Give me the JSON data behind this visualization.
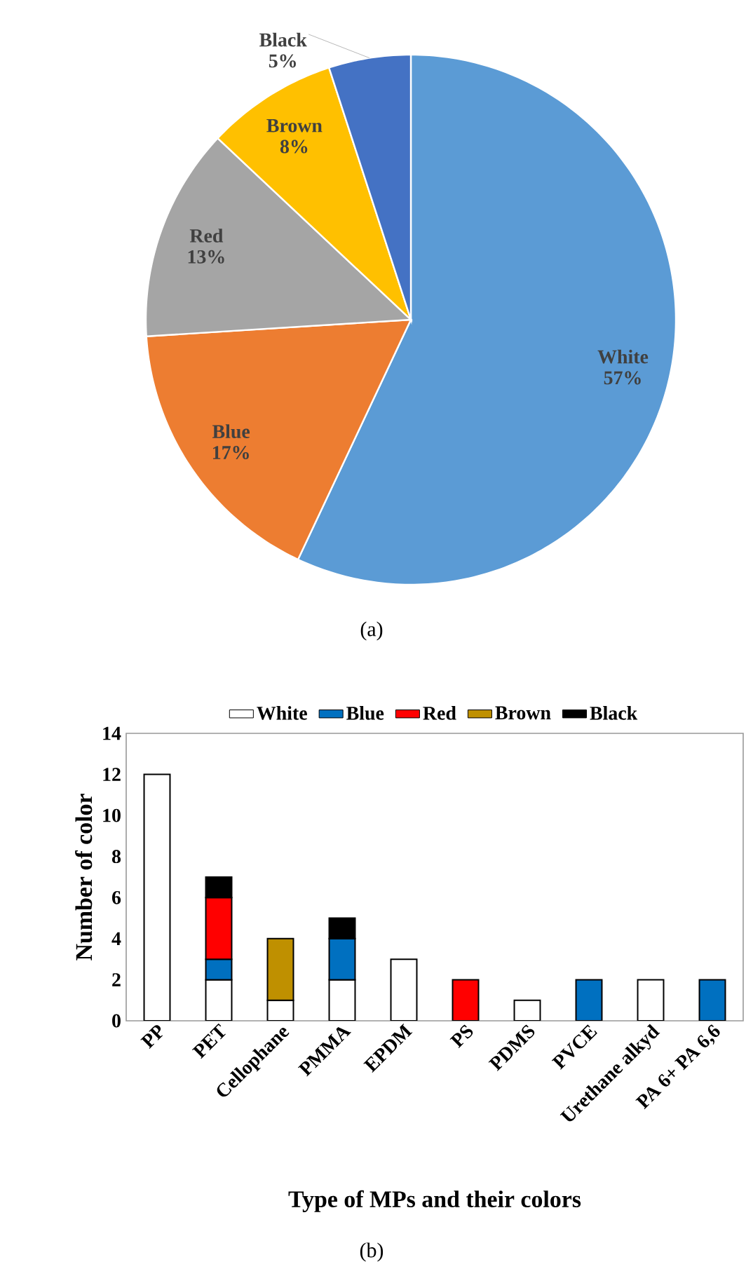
{
  "chart_data": [
    {
      "type": "pie",
      "categories": [
        "White",
        "Blue",
        "Red",
        "Brown",
        "Black"
      ],
      "values": [
        57,
        17,
        13,
        8,
        5
      ],
      "colors": [
        "#5b9bd5",
        "#ed7d31",
        "#a5a5a5",
        "#ffc000",
        "#4472c4"
      ],
      "value_labels": [
        "57%",
        "17%",
        "13%",
        "8%",
        "5%"
      ],
      "annotations": [
        "(a)"
      ]
    },
    {
      "type": "bar",
      "categories": [
        "PP",
        "PET",
        "Cellophane",
        "PMMA",
        "EPDM",
        "PS",
        "PDMS",
        "PVCE",
        "Urethane alkyd",
        "PA 6+ PA 6,6"
      ],
      "stacked": true,
      "series": [
        {
          "name": "White",
          "color": "#ffffff",
          "values": [
            12,
            2,
            1,
            2,
            3,
            null,
            1,
            null,
            2,
            null
          ]
        },
        {
          "name": "Blue",
          "color": "#0070c0",
          "values": [
            null,
            1,
            null,
            2,
            null,
            null,
            null,
            2,
            null,
            2
          ]
        },
        {
          "name": "Red",
          "color": "#ff0000",
          "values": [
            null,
            3,
            null,
            null,
            null,
            2,
            null,
            null,
            null,
            null
          ]
        },
        {
          "name": "Brown",
          "color": "#bf9000",
          "values": [
            null,
            null,
            3,
            null,
            null,
            null,
            null,
            null,
            null,
            null
          ]
        },
        {
          "name": "Black",
          "color": "#000000",
          "values": [
            null,
            1,
            null,
            1,
            null,
            null,
            null,
            null,
            null,
            null
          ]
        }
      ],
      "ylim": [
        0,
        14
      ],
      "yticks": [
        0,
        2,
        4,
        6,
        8,
        10,
        12,
        14
      ],
      "xlabel": "Type of MPs and their colors",
      "ylabel": "Number of color",
      "legend": "top",
      "annotations": [
        "(b)"
      ]
    }
  ]
}
